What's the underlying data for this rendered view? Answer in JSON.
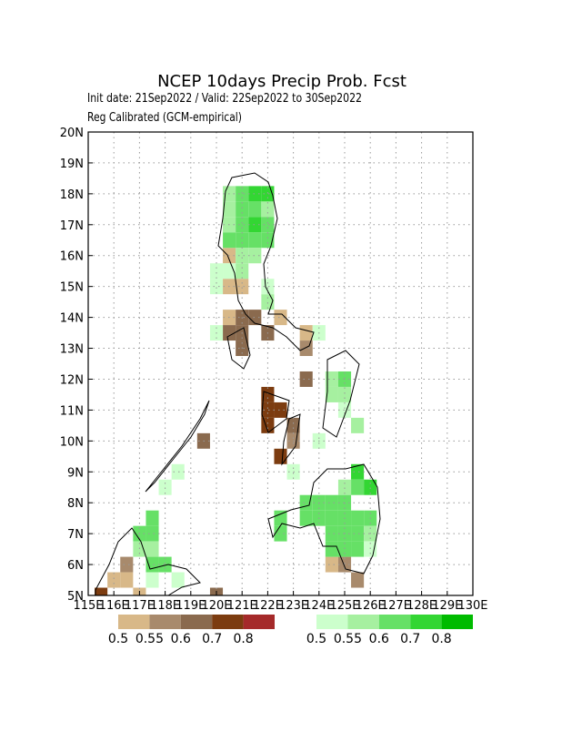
{
  "title": "NCEP 10days Precip Prob. Fcst",
  "subtitle": "Init date: 21Sep2022 / Valid: 22Sep2022 to 30Sep2022",
  "method": "Reg Calibrated (GCM-empirical)",
  "chart_data": {
    "type": "grid-map",
    "xlim": [
      115,
      130
    ],
    "ylim": [
      5,
      20
    ],
    "cell_size": 0.5,
    "grid": true,
    "xticks": [
      {
        "value": 115,
        "label": "115E"
      },
      {
        "value": 116,
        "label": "116E"
      },
      {
        "value": 117,
        "label": "117E"
      },
      {
        "value": 118,
        "label": "118E"
      },
      {
        "value": 119,
        "label": "119E"
      },
      {
        "value": 120,
        "label": "120E"
      },
      {
        "value": 121,
        "label": "121E"
      },
      {
        "value": 122,
        "label": "122E"
      },
      {
        "value": 123,
        "label": "123E"
      },
      {
        "value": 124,
        "label": "124E"
      },
      {
        "value": 125,
        "label": "125E"
      },
      {
        "value": 126,
        "label": "126E"
      },
      {
        "value": 127,
        "label": "127E"
      },
      {
        "value": 128,
        "label": "128E"
      },
      {
        "value": 129,
        "label": "129E"
      },
      {
        "value": 130,
        "label": "130E"
      }
    ],
    "yticks": [
      {
        "value": 5,
        "label": "5N"
      },
      {
        "value": 6,
        "label": "6N"
      },
      {
        "value": 7,
        "label": "7N"
      },
      {
        "value": 8,
        "label": "8N"
      },
      {
        "value": 9,
        "label": "9N"
      },
      {
        "value": 10,
        "label": "10N"
      },
      {
        "value": 11,
        "label": "11N"
      },
      {
        "value": 12,
        "label": "12N"
      },
      {
        "value": 13,
        "label": "13N"
      },
      {
        "value": 14,
        "label": "14N"
      },
      {
        "value": 15,
        "label": "15N"
      },
      {
        "value": 16,
        "label": "16N"
      },
      {
        "value": 17,
        "label": "17N"
      },
      {
        "value": 18,
        "label": "18N"
      },
      {
        "value": 19,
        "label": "19N"
      },
      {
        "value": 20,
        "label": "20N"
      }
    ],
    "dry_scale": {
      "levels": [
        0.5,
        0.55,
        0.6,
        0.7,
        0.8
      ],
      "colors": [
        "#d8b888",
        "#a88a6c",
        "#8a6a4e",
        "#7c3c10",
        "#a52a2a"
      ]
    },
    "wet_scale": {
      "levels": [
        0.5,
        0.55,
        0.6,
        0.7,
        0.8
      ],
      "colors": [
        "#ccffcc",
        "#a6f0a0",
        "#66e066",
        "#33d633",
        "#00bb00"
      ]
    },
    "dry_cells": [
      {
        "lon": 120.25,
        "lat": 15.75,
        "p": 0.5
      },
      {
        "lon": 120.25,
        "lat": 14.75,
        "p": 0.5
      },
      {
        "lon": 120.75,
        "lat": 14.75,
        "p": 0.5
      },
      {
        "lon": 120.25,
        "lat": 13.75,
        "p": 0.5
      },
      {
        "lon": 120.75,
        "lat": 13.75,
        "p": 0.6
      },
      {
        "lon": 121.25,
        "lat": 13.75,
        "p": 0.6
      },
      {
        "lon": 120.25,
        "lat": 13.25,
        "p": 0.6
      },
      {
        "lon": 120.75,
        "lat": 13.25,
        "p": 0.6
      },
      {
        "lon": 120.75,
        "lat": 12.75,
        "p": 0.6
      },
      {
        "lon": 121.75,
        "lat": 13.25,
        "p": 0.6
      },
      {
        "lon": 122.25,
        "lat": 13.75,
        "p": 0.5
      },
      {
        "lon": 123.25,
        "lat": 13.25,
        "p": 0.5
      },
      {
        "lon": 123.25,
        "lat": 12.75,
        "p": 0.55
      },
      {
        "lon": 123.25,
        "lat": 11.75,
        "p": 0.6
      },
      {
        "lon": 121.75,
        "lat": 11.25,
        "p": 0.7
      },
      {
        "lon": 121.75,
        "lat": 10.75,
        "p": 0.7
      },
      {
        "lon": 122.25,
        "lat": 10.75,
        "p": 0.7
      },
      {
        "lon": 121.75,
        "lat": 10.25,
        "p": 0.7
      },
      {
        "lon": 122.75,
        "lat": 10.25,
        "p": 0.6
      },
      {
        "lon": 122.75,
        "lat": 9.75,
        "p": 0.55
      },
      {
        "lon": 122.25,
        "lat": 9.25,
        "p": 0.7
      },
      {
        "lon": 119.25,
        "lat": 9.75,
        "p": 0.6
      },
      {
        "lon": 116.25,
        "lat": 5.75,
        "p": 0.55
      },
      {
        "lon": 116.25,
        "lat": 5.25,
        "p": 0.5
      },
      {
        "lon": 115.75,
        "lat": 5.25,
        "p": 0.5
      },
      {
        "lon": 115.25,
        "lat": 4.75,
        "p": 0.7
      },
      {
        "lon": 116.75,
        "lat": 4.75,
        "p": 0.5
      },
      {
        "lon": 119.75,
        "lat": 4.75,
        "p": 0.6
      },
      {
        "lon": 124.25,
        "lat": 5.75,
        "p": 0.5
      },
      {
        "lon": 124.75,
        "lat": 5.75,
        "p": 0.55
      },
      {
        "lon": 125.25,
        "lat": 5.25,
        "p": 0.55
      }
    ],
    "wet_cells": [
      {
        "lon": 120.25,
        "lat": 17.75,
        "p": 0.55
      },
      {
        "lon": 120.75,
        "lat": 17.75,
        "p": 0.6
      },
      {
        "lon": 121.25,
        "lat": 17.75,
        "p": 0.7
      },
      {
        "lon": 121.75,
        "lat": 17.75,
        "p": 0.7
      },
      {
        "lon": 120.25,
        "lat": 17.25,
        "p": 0.55
      },
      {
        "lon": 120.75,
        "lat": 17.25,
        "p": 0.6
      },
      {
        "lon": 121.25,
        "lat": 17.25,
        "p": 0.6
      },
      {
        "lon": 121.75,
        "lat": 17.25,
        "p": 0.55
      },
      {
        "lon": 120.25,
        "lat": 16.75,
        "p": 0.55
      },
      {
        "lon": 120.75,
        "lat": 16.75,
        "p": 0.6
      },
      {
        "lon": 121.25,
        "lat": 16.75,
        "p": 0.7
      },
      {
        "lon": 121.75,
        "lat": 16.75,
        "p": 0.6
      },
      {
        "lon": 120.25,
        "lat": 16.25,
        "p": 0.6
      },
      {
        "lon": 120.75,
        "lat": 16.25,
        "p": 0.6
      },
      {
        "lon": 121.25,
        "lat": 16.25,
        "p": 0.6
      },
      {
        "lon": 121.75,
        "lat": 16.25,
        "p": 0.6
      },
      {
        "lon": 120.75,
        "lat": 15.75,
        "p": 0.55
      },
      {
        "lon": 121.25,
        "lat": 15.75,
        "p": 0.55
      },
      {
        "lon": 119.75,
        "lat": 15.25,
        "p": 0.5
      },
      {
        "lon": 120.25,
        "lat": 15.25,
        "p": 0.5
      },
      {
        "lon": 120.75,
        "lat": 15.25,
        "p": 0.55
      },
      {
        "lon": 119.75,
        "lat": 14.75,
        "p": 0.5
      },
      {
        "lon": 121.75,
        "lat": 14.25,
        "p": 0.55
      },
      {
        "lon": 121.75,
        "lat": 14.75,
        "p": 0.5
      },
      {
        "lon": 119.75,
        "lat": 13.25,
        "p": 0.5
      },
      {
        "lon": 123.75,
        "lat": 13.25,
        "p": 0.5
      },
      {
        "lon": 124.25,
        "lat": 11.75,
        "p": 0.55
      },
      {
        "lon": 124.75,
        "lat": 11.75,
        "p": 0.6
      },
      {
        "lon": 124.25,
        "lat": 11.25,
        "p": 0.55
      },
      {
        "lon": 124.75,
        "lat": 11.25,
        "p": 0.55
      },
      {
        "lon": 124.75,
        "lat": 10.75,
        "p": 0.5
      },
      {
        "lon": 125.25,
        "lat": 10.25,
        "p": 0.55
      },
      {
        "lon": 123.75,
        "lat": 9.75,
        "p": 0.5
      },
      {
        "lon": 122.75,
        "lat": 8.75,
        "p": 0.5
      },
      {
        "lon": 125.25,
        "lat": 8.75,
        "p": 0.7
      },
      {
        "lon": 125.25,
        "lat": 8.25,
        "p": 0.6
      },
      {
        "lon": 125.75,
        "lat": 8.25,
        "p": 0.7
      },
      {
        "lon": 124.75,
        "lat": 8.25,
        "p": 0.55
      },
      {
        "lon": 123.25,
        "lat": 7.75,
        "p": 0.6
      },
      {
        "lon": 123.75,
        "lat": 7.75,
        "p": 0.6
      },
      {
        "lon": 124.25,
        "lat": 7.75,
        "p": 0.6
      },
      {
        "lon": 124.75,
        "lat": 7.75,
        "p": 0.6
      },
      {
        "lon": 123.25,
        "lat": 7.25,
        "p": 0.6
      },
      {
        "lon": 123.75,
        "lat": 7.25,
        "p": 0.6
      },
      {
        "lon": 124.25,
        "lat": 7.25,
        "p": 0.6
      },
      {
        "lon": 124.75,
        "lat": 7.25,
        "p": 0.6
      },
      {
        "lon": 125.25,
        "lat": 7.25,
        "p": 0.6
      },
      {
        "lon": 125.75,
        "lat": 7.25,
        "p": 0.6
      },
      {
        "lon": 124.25,
        "lat": 6.75,
        "p": 0.6
      },
      {
        "lon": 124.75,
        "lat": 6.75,
        "p": 0.6
      },
      {
        "lon": 125.25,
        "lat": 6.75,
        "p": 0.6
      },
      {
        "lon": 125.75,
        "lat": 6.75,
        "p": 0.55
      },
      {
        "lon": 124.25,
        "lat": 6.25,
        "p": 0.6
      },
      {
        "lon": 124.75,
        "lat": 6.25,
        "p": 0.6
      },
      {
        "lon": 125.25,
        "lat": 6.25,
        "p": 0.6
      },
      {
        "lon": 125.75,
        "lat": 6.25,
        "p": 0.5
      },
      {
        "lon": 122.25,
        "lat": 7.25,
        "p": 0.6
      },
      {
        "lon": 122.25,
        "lat": 6.75,
        "p": 0.6
      },
      {
        "lon": 116.75,
        "lat": 6.75,
        "p": 0.6
      },
      {
        "lon": 117.25,
        "lat": 6.75,
        "p": 0.6
      },
      {
        "lon": 117.25,
        "lat": 7.25,
        "p": 0.6
      },
      {
        "lon": 116.75,
        "lat": 6.25,
        "p": 0.55
      },
      {
        "lon": 117.25,
        "lat": 6.25,
        "p": 0.55
      },
      {
        "lon": 117.25,
        "lat": 5.75,
        "p": 0.6
      },
      {
        "lon": 117.75,
        "lat": 5.75,
        "p": 0.6
      },
      {
        "lon": 117.25,
        "lat": 5.25,
        "p": 0.5
      },
      {
        "lon": 118.25,
        "lat": 5.25,
        "p": 0.5
      },
      {
        "lon": 117.75,
        "lat": 8.25,
        "p": 0.5
      },
      {
        "lon": 118.25,
        "lat": 8.75,
        "p": 0.5
      }
    ]
  },
  "legend_labels": {
    "dry": [
      "0.5",
      "0.55",
      "0.6",
      "0.7",
      "0.8"
    ],
    "wet": [
      "0.5",
      "0.55",
      "0.6",
      "0.7",
      "0.8"
    ]
  }
}
